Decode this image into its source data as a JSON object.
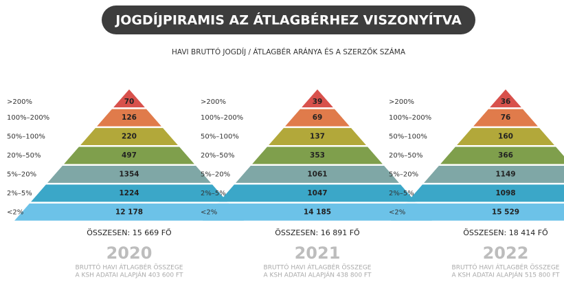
{
  "header": {
    "title": "JOGDÍJPIRAMIS AZ ÁTLAGBÉRHEZ VISZONYÍTVA",
    "subtitle": "HAVI BRUTTÓ JOGDÍJ / ÁTLAGBÉR ARÁNYA ÉS A SZERZŐK SZÁMA"
  },
  "pyramids": [
    {
      "levels": [
        {
          "label": ">200%",
          "value": "70"
        },
        {
          "label": "100%–200%",
          "value": "126"
        },
        {
          "label": "50%–100%",
          "value": "220"
        },
        {
          "label": "20%–50%",
          "value": "497"
        },
        {
          "label": "5%–20%",
          "value": "1354"
        },
        {
          "label": "2%–5%",
          "value": "1224"
        },
        {
          "label": "<2%",
          "value": "12 178"
        }
      ],
      "total": "ÖSSZESEN: 15 669 FŐ",
      "year": "2020",
      "note": [
        "BRUTTÓ HAVI ÁTLAGBÉR ÖSSZEGE",
        "A KSH ADATAI ALAPJÁN 403 600 FT"
      ]
    },
    {
      "levels": [
        {
          "label": ">200%",
          "value": "39"
        },
        {
          "label": "100%–200%",
          "value": "69"
        },
        {
          "label": "50%–100%",
          "value": "137"
        },
        {
          "label": "20%–50%",
          "value": "353"
        },
        {
          "label": "5%–20%",
          "value": "1061"
        },
        {
          "label": "2%–5%",
          "value": "1047"
        },
        {
          "label": "<2%",
          "value": "14 185"
        }
      ],
      "total": "ÖSSZESEN: 16 891 FŐ",
      "year": "2021",
      "note": [
        "BRUTTÓ HAVI ÁTLAGBÉR ÖSSZEGE",
        "A KSH ADATAI ALAPJÁN 438 800 FT"
      ]
    },
    {
      "levels": [
        {
          "label": ">200%",
          "value": "36"
        },
        {
          "label": "100%–200%",
          "value": "76"
        },
        {
          "label": "50%–100%",
          "value": "160"
        },
        {
          "label": "20%–50%",
          "value": "366"
        },
        {
          "label": "5%–20%",
          "value": "1149"
        },
        {
          "label": "2%–5%",
          "value": "1098"
        },
        {
          "label": "<2%",
          "value": "15 529"
        }
      ],
      "total": "ÖSSZESEN: 18 414 FŐ",
      "year": "2022",
      "note": [
        "BRUTTÓ HAVI ÁTLAGBÉR ÖSSZEGE",
        "A KSH ADATAI ALAPJÁN 515 800 FT"
      ]
    }
  ]
}
